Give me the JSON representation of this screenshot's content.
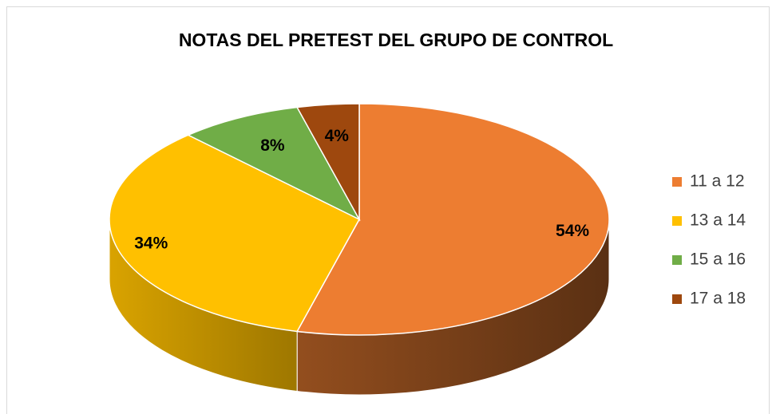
{
  "chart_data": {
    "type": "pie3d",
    "title": "NOTAS DEL PRETEST  DEL GRUPO DE CONTROL",
    "categories": [
      "11 a 12",
      "13 a 14",
      "15 a 16",
      "17 a 18"
    ],
    "values": [
      54,
      34,
      8,
      4
    ],
    "value_labels": [
      "54%",
      "34%",
      "8%",
      "4%"
    ],
    "colors": [
      "#ed7d31",
      "#ffc000",
      "#70ad47",
      "#9e480e"
    ],
    "legend": "right"
  }
}
